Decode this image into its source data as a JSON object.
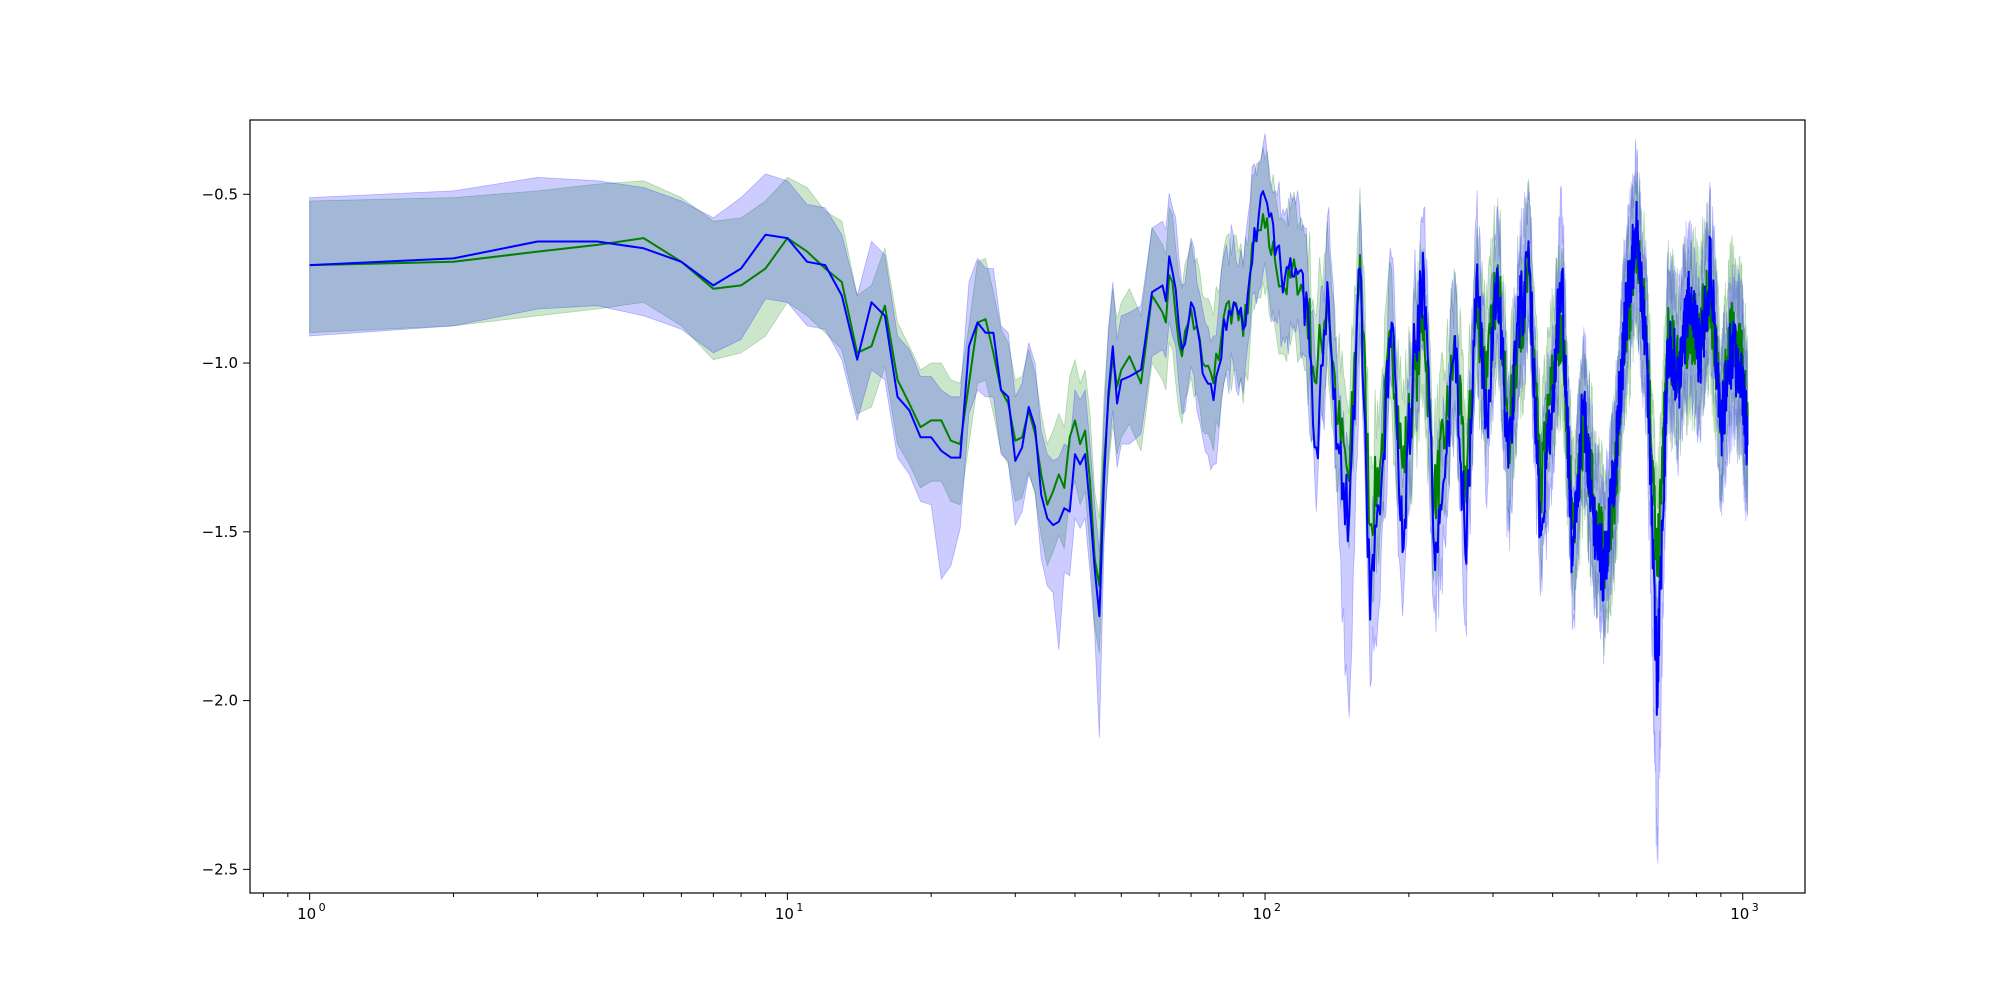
{
  "chart_data": {
    "type": "line",
    "title": "",
    "xlabel": "",
    "ylabel": "",
    "xscale": "log",
    "xlim": [
      0.75,
      1350
    ],
    "ylim": [
      -2.57,
      -0.28
    ],
    "grid": false,
    "legend": "none",
    "x_ticks": [
      {
        "base": "10",
        "exp": "0",
        "value": 1
      },
      {
        "base": "10",
        "exp": "1",
        "value": 10
      },
      {
        "base": "10",
        "exp": "2",
        "value": 100
      },
      {
        "base": "10",
        "exp": "3",
        "value": 1000
      }
    ],
    "y_ticks": [
      {
        "label": "−0.5",
        "value": -0.5
      },
      {
        "label": "−1.0",
        "value": -1.0
      },
      {
        "label": "−1.5",
        "value": -1.5
      },
      {
        "label": "−2.0",
        "value": -2.0
      },
      {
        "label": "−2.5",
        "value": -2.5
      }
    ],
    "x_extent": [
      1,
      1024
    ],
    "series": [
      {
        "color": "#008000",
        "band_color": "#008000",
        "band_opacity": 0.2,
        "x": [
          1,
          2,
          3,
          4,
          5,
          6,
          7,
          8,
          9,
          10,
          11,
          12,
          13,
          14,
          15,
          16,
          17,
          18,
          19,
          20,
          21,
          22,
          23,
          24,
          25,
          26,
          27,
          28,
          29,
          30,
          31,
          32,
          33,
          34,
          35,
          36,
          37,
          38,
          39,
          40,
          41,
          42,
          43,
          44,
          45,
          46,
          47,
          48,
          49,
          50,
          52,
          55,
          58,
          61,
          64,
          67,
          70,
          74,
          78,
          82,
          86,
          90,
          95,
          100,
          105,
          110,
          116,
          122,
          128,
          135,
          142,
          150,
          158,
          166,
          175,
          184,
          194,
          204,
          215,
          226,
          238,
          250,
          263,
          277,
          292,
          307,
          323,
          340,
          358,
          377,
          397,
          418,
          440,
          463,
          487,
          513,
          540,
          568,
          598,
          629,
          662,
          697,
          734,
          772,
          813,
          855,
          900,
          947,
          997,
          1024
        ],
        "mean": [
          -0.71,
          -0.7,
          -0.67,
          -0.65,
          -0.63,
          -0.7,
          -0.78,
          -0.77,
          -0.72,
          -0.63,
          -0.67,
          -0.72,
          -0.76,
          -0.97,
          -0.95,
          -0.83,
          -1.05,
          -1.12,
          -1.19,
          -1.17,
          -1.17,
          -1.23,
          -1.24,
          -1.06,
          -0.88,
          -0.87,
          -0.97,
          -1.08,
          -1.12,
          -1.23,
          -1.22,
          -1.14,
          -1.21,
          -1.33,
          -1.42,
          -1.38,
          -1.33,
          -1.37,
          -1.22,
          -1.17,
          -1.24,
          -1.2,
          -1.35,
          -1.58,
          -1.66,
          -1.3,
          -1.11,
          -0.98,
          -1.07,
          -1.02,
          -0.98,
          -1.06,
          -0.8,
          -0.85,
          -0.76,
          -0.98,
          -0.84,
          -1.0,
          -1.06,
          -0.86,
          -0.82,
          -0.92,
          -0.64,
          -0.6,
          -0.7,
          -0.78,
          -0.73,
          -0.82,
          -1.06,
          -0.78,
          -1.18,
          -1.35,
          -0.68,
          -1.48,
          -1.27,
          -0.92,
          -1.31,
          -1.09,
          -0.86,
          -1.41,
          -1.22,
          -0.95,
          -1.37,
          -0.84,
          -1.04,
          -0.71,
          -1.24,
          -0.9,
          -0.74,
          -1.38,
          -1.08,
          -0.86,
          -1.49,
          -1.22,
          -1.39,
          -1.58,
          -1.36,
          -0.92,
          -0.66,
          -0.89,
          -1.63,
          -0.94,
          -1.0,
          -0.89,
          -0.91,
          -0.79,
          -1.13,
          -0.92,
          -1.0,
          -1.16
        ],
        "upper": [
          -0.52,
          -0.51,
          -0.49,
          -0.47,
          -0.46,
          -0.51,
          -0.58,
          -0.57,
          -0.52,
          -0.45,
          -0.48,
          -0.55,
          -0.58,
          -0.8,
          -0.77,
          -0.66,
          -0.88,
          -0.95,
          -1.02,
          -1.0,
          -1.0,
          -1.05,
          -1.06,
          -0.89,
          -0.7,
          -0.69,
          -0.79,
          -0.9,
          -0.94,
          -1.05,
          -1.04,
          -0.96,
          -1.03,
          -1.15,
          -1.24,
          -1.2,
          -1.15,
          -1.19,
          -1.04,
          -0.99,
          -1.06,
          -1.02,
          -1.15,
          -1.38,
          -1.46,
          -1.1,
          -0.91,
          -0.78,
          -0.87,
          -0.82,
          -0.78,
          -0.86,
          -0.6,
          -0.65,
          -0.56,
          -0.78,
          -0.64,
          -0.8,
          -0.86,
          -0.66,
          -0.62,
          -0.72,
          -0.44,
          -0.4,
          -0.5,
          -0.58,
          -0.53,
          -0.62,
          -0.86,
          -0.58,
          -0.98,
          -1.15,
          -0.48,
          -1.28,
          -1.07,
          -0.72,
          -1.11,
          -0.89,
          -0.66,
          -1.21,
          -1.02,
          -0.75,
          -1.17,
          -0.64,
          -0.84,
          -0.51,
          -1.04,
          -0.7,
          -0.54,
          -1.18,
          -0.88,
          -0.66,
          -1.29,
          -1.02,
          -1.19,
          -1.38,
          -1.16,
          -0.72,
          -0.46,
          -0.69,
          -1.43,
          -0.74,
          -0.8,
          -0.69,
          -0.71,
          -0.59,
          -0.93,
          -0.72,
          -0.8,
          -0.96
        ],
        "lower": [
          -0.91,
          -0.89,
          -0.86,
          -0.84,
          -0.82,
          -0.89,
          -0.99,
          -0.97,
          -0.92,
          -0.82,
          -0.86,
          -0.91,
          -0.96,
          -1.15,
          -1.13,
          -1.01,
          -1.24,
          -1.3,
          -1.37,
          -1.35,
          -1.35,
          -1.41,
          -1.42,
          -1.24,
          -1.06,
          -1.05,
          -1.15,
          -1.26,
          -1.3,
          -1.41,
          -1.4,
          -1.32,
          -1.39,
          -1.51,
          -1.6,
          -1.56,
          -1.51,
          -1.55,
          -1.4,
          -1.35,
          -1.42,
          -1.38,
          -1.55,
          -1.78,
          -1.86,
          -1.5,
          -1.31,
          -1.18,
          -1.27,
          -1.22,
          -1.18,
          -1.26,
          -1.0,
          -1.05,
          -0.96,
          -1.18,
          -1.04,
          -1.2,
          -1.26,
          -1.06,
          -1.02,
          -1.12,
          -0.84,
          -0.8,
          -0.9,
          -0.98,
          -0.93,
          -1.02,
          -1.26,
          -0.98,
          -1.38,
          -1.55,
          -0.88,
          -1.68,
          -1.47,
          -1.12,
          -1.51,
          -1.29,
          -1.06,
          -1.61,
          -1.42,
          -1.15,
          -1.57,
          -1.04,
          -1.24,
          -0.91,
          -1.44,
          -1.1,
          -0.94,
          -1.58,
          -1.28,
          -1.06,
          -1.69,
          -1.42,
          -1.59,
          -1.78,
          -1.56,
          -1.12,
          -0.86,
          -1.09,
          -1.83,
          -1.14,
          -1.2,
          -1.09,
          -1.11,
          -0.99,
          -1.33,
          -1.12,
          -1.2,
          -1.36
        ]
      },
      {
        "color": "#0000ff",
        "band_color": "#0000ff",
        "band_opacity": 0.2,
        "x": [
          1,
          2,
          3,
          4,
          5,
          6,
          7,
          8,
          9,
          10,
          11,
          12,
          13,
          14,
          15,
          16,
          17,
          18,
          19,
          20,
          21,
          22,
          23,
          24,
          25,
          26,
          27,
          28,
          29,
          30,
          31,
          32,
          33,
          34,
          35,
          36,
          37,
          38,
          39,
          40,
          41,
          42,
          43,
          44,
          45,
          46,
          47,
          48,
          49,
          50,
          52,
          55,
          58,
          61,
          64,
          67,
          70,
          74,
          78,
          82,
          86,
          90,
          95,
          100,
          105,
          110,
          116,
          122,
          128,
          135,
          142,
          150,
          158,
          166,
          175,
          184,
          194,
          204,
          215,
          226,
          238,
          250,
          263,
          277,
          292,
          307,
          323,
          340,
          358,
          377,
          397,
          418,
          440,
          463,
          487,
          513,
          540,
          568,
          598,
          629,
          662,
          697,
          734,
          772,
          813,
          855,
          900,
          947,
          997,
          1024
        ],
        "mean": [
          -0.71,
          -0.69,
          -0.64,
          -0.64,
          -0.66,
          -0.7,
          -0.77,
          -0.72,
          -0.62,
          -0.63,
          -0.7,
          -0.71,
          -0.8,
          -0.99,
          -0.82,
          -0.86,
          -1.1,
          -1.14,
          -1.22,
          -1.22,
          -1.26,
          -1.28,
          -1.28,
          -0.95,
          -0.88,
          -0.91,
          -0.91,
          -1.08,
          -1.1,
          -1.29,
          -1.25,
          -1.13,
          -1.19,
          -1.39,
          -1.46,
          -1.48,
          -1.47,
          -1.43,
          -1.44,
          -1.27,
          -1.3,
          -1.27,
          -1.43,
          -1.61,
          -1.75,
          -1.35,
          -1.09,
          -0.95,
          -1.12,
          -1.05,
          -1.04,
          -1.02,
          -0.79,
          -0.77,
          -0.73,
          -0.96,
          -0.82,
          -1.03,
          -1.11,
          -0.87,
          -0.82,
          -0.9,
          -0.6,
          -0.51,
          -0.68,
          -0.75,
          -0.72,
          -0.79,
          -1.25,
          -0.76,
          -1.24,
          -1.45,
          -0.72,
          -1.76,
          -1.37,
          -0.88,
          -1.56,
          -1.01,
          -0.73,
          -1.55,
          -1.34,
          -0.92,
          -1.58,
          -0.75,
          -1.18,
          -0.74,
          -1.31,
          -0.86,
          -0.72,
          -1.5,
          -1.15,
          -0.73,
          -1.6,
          -1.11,
          -1.46,
          -1.62,
          -1.31,
          -0.86,
          -0.62,
          -0.95,
          -1.97,
          -0.93,
          -1.04,
          -0.81,
          -0.98,
          -0.71,
          -1.2,
          -0.96,
          -1.05,
          -1.24
        ],
        "upper": [
          -0.51,
          -0.49,
          -0.45,
          -0.46,
          -0.48,
          -0.52,
          -0.57,
          -0.51,
          -0.44,
          -0.46,
          -0.53,
          -0.54,
          -0.62,
          -0.8,
          -0.64,
          -0.68,
          -0.92,
          -0.96,
          -1.04,
          -1.04,
          -1.08,
          -1.1,
          -1.1,
          -0.76,
          -0.69,
          -0.72,
          -0.72,
          -0.89,
          -0.91,
          -1.1,
          -1.06,
          -0.94,
          -1.0,
          -1.2,
          -1.27,
          -1.29,
          -1.28,
          -1.24,
          -1.25,
          -1.08,
          -1.11,
          -1.08,
          -1.24,
          -1.42,
          -1.56,
          -1.16,
          -0.9,
          -0.76,
          -0.93,
          -0.86,
          -0.85,
          -0.83,
          -0.6,
          -0.58,
          -0.54,
          -0.77,
          -0.63,
          -0.84,
          -0.92,
          -0.68,
          -0.63,
          -0.71,
          -0.41,
          -0.32,
          -0.49,
          -0.56,
          -0.53,
          -0.6,
          -1.06,
          -0.57,
          -1.05,
          -1.26,
          -0.53,
          -1.57,
          -1.18,
          -0.69,
          -1.37,
          -0.82,
          -0.54,
          -1.36,
          -1.15,
          -0.73,
          -1.39,
          -0.56,
          -0.99,
          -0.55,
          -1.12,
          -0.67,
          -0.53,
          -1.31,
          -0.96,
          -0.54,
          -1.41,
          -0.92,
          -1.27,
          -1.43,
          -1.12,
          -0.67,
          -0.43,
          -0.76,
          -1.78,
          -0.74,
          -0.85,
          -0.62,
          -0.79,
          -0.52,
          -1.01,
          -0.77,
          -0.86,
          -1.05
        ],
        "lower": [
          -0.92,
          -0.89,
          -0.84,
          -0.83,
          -0.86,
          -0.9,
          -0.97,
          -0.93,
          -0.81,
          -0.82,
          -0.89,
          -0.9,
          -0.99,
          -1.17,
          -1.02,
          -1.05,
          -1.28,
          -1.33,
          -1.41,
          -1.42,
          -1.64,
          -1.6,
          -1.49,
          -1.15,
          -1.08,
          -1.1,
          -1.1,
          -1.27,
          -1.29,
          -1.48,
          -1.44,
          -1.33,
          -1.38,
          -1.58,
          -1.66,
          -1.68,
          -1.85,
          -1.62,
          -1.63,
          -1.46,
          -1.49,
          -1.46,
          -1.62,
          -1.8,
          -2.11,
          -1.54,
          -1.28,
          -1.14,
          -1.31,
          -1.24,
          -1.24,
          -1.21,
          -0.98,
          -0.96,
          -0.92,
          -1.15,
          -1.01,
          -1.22,
          -1.3,
          -1.06,
          -1.01,
          -1.09,
          -0.79,
          -0.7,
          -0.87,
          -0.94,
          -0.91,
          -0.98,
          -1.44,
          -0.95,
          -1.43,
          -2.05,
          -0.91,
          -1.96,
          -1.56,
          -1.07,
          -1.75,
          -1.2,
          -0.92,
          -1.74,
          -1.53,
          -1.11,
          -1.77,
          -0.94,
          -1.37,
          -0.93,
          -1.5,
          -1.05,
          -0.91,
          -1.69,
          -1.34,
          -0.92,
          -1.79,
          -1.3,
          -1.65,
          -1.81,
          -1.5,
          -1.05,
          -0.81,
          -1.14,
          -2.47,
          -1.12,
          -1.23,
          -1.0,
          -1.17,
          -0.9,
          -1.39,
          -1.15,
          -1.24,
          -1.43
        ]
      }
    ]
  }
}
